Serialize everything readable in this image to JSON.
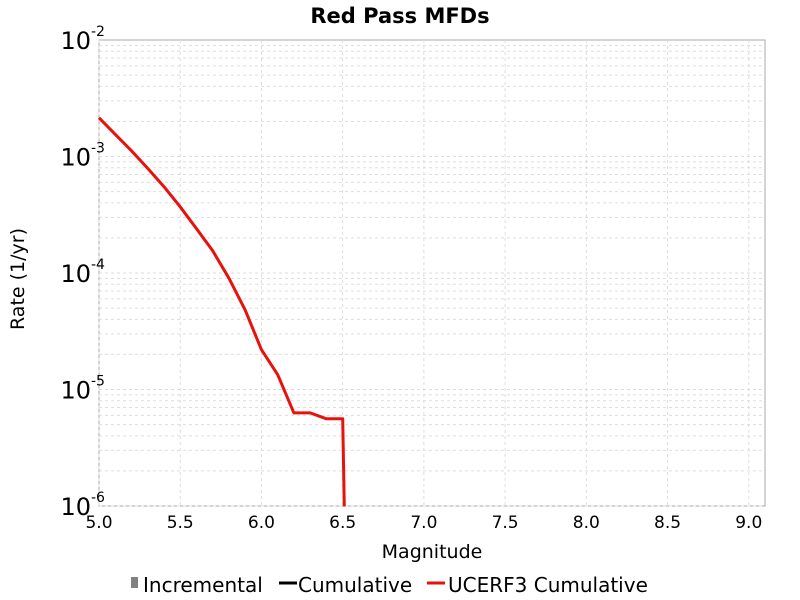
{
  "chart_data": {
    "type": "line",
    "title": "Red Pass MFDs",
    "xlabel": "Magnitude",
    "ylabel": "Rate (1/yr)",
    "xlim": [
      5.0,
      9.1
    ],
    "ylim": [
      1e-06,
      0.01
    ],
    "y_scale": "log",
    "grid": true,
    "x_ticks": [
      "5.0",
      "5.5",
      "6.0",
      "6.5",
      "7.0",
      "7.5",
      "8.0",
      "8.5",
      "9.0"
    ],
    "y_ticks": [
      {
        "base": "10",
        "exp": "-2"
      },
      {
        "base": "10",
        "exp": "-3"
      },
      {
        "base": "10",
        "exp": "-4"
      },
      {
        "base": "10",
        "exp": "-5"
      },
      {
        "base": "10",
        "exp": "-6"
      }
    ],
    "legend": {
      "position": "bottom",
      "entries": [
        {
          "label": "Incremental",
          "color": "#808080",
          "style": "bar"
        },
        {
          "label": "Cumulative",
          "color": "#000000",
          "style": "line"
        },
        {
          "label": "UCERF3 Cumulative",
          "color": "#e8120c",
          "style": "line"
        }
      ]
    },
    "series": [
      {
        "name": "UCERF3 Cumulative",
        "color": "#e8120c",
        "x": [
          5.0,
          5.1,
          5.2,
          5.3,
          5.4,
          5.5,
          5.6,
          5.7,
          5.8,
          5.9,
          6.0,
          6.1,
          6.2,
          6.3,
          6.4,
          6.5,
          6.51
        ],
        "y": [
          0.00215,
          0.00155,
          0.00112,
          0.00079,
          0.00055,
          0.00037,
          0.00024,
          0.000155,
          9e-05,
          4.8e-05,
          2.2e-05,
          1.34e-05,
          6.3e-06,
          6.3e-06,
          5.6e-06,
          5.6e-06,
          9.9e-07
        ]
      }
    ]
  }
}
